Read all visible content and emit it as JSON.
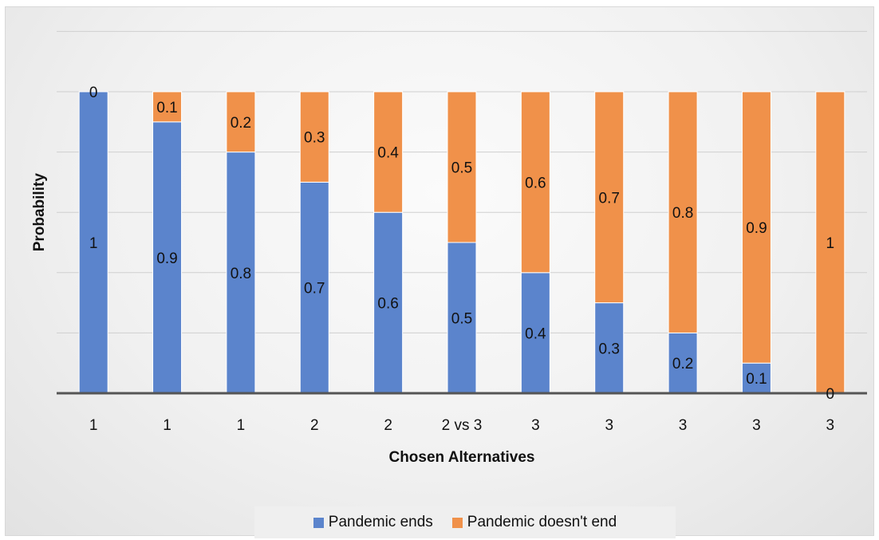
{
  "chart_data": {
    "type": "bar",
    "stacked": true,
    "title": "",
    "xlabel": "Chosen Alternatives",
    "ylabel": "Probability",
    "ylim": [
      0,
      1.2
    ],
    "y_tick_labels_shown": false,
    "grid": true,
    "legend_position": "bottom",
    "categories": [
      "1",
      "1",
      "1",
      "2",
      "2",
      "2 vs 3",
      "3",
      "3",
      "3",
      "3",
      "3"
    ],
    "series": [
      {
        "name": "Pandemic ends",
        "color": "#5b84cc",
        "values": [
          1,
          0.9,
          0.8,
          0.7,
          0.6,
          0.5,
          0.4,
          0.3,
          0.2,
          0.1,
          0
        ],
        "labels": [
          "1",
          "0.9",
          "0.8",
          "0.7",
          "0.6",
          "0.5",
          "0.4",
          "0.3",
          "0.2",
          "0.1",
          "0"
        ]
      },
      {
        "name": "Pandemic doesn't end",
        "color": "#f0914a",
        "values": [
          0,
          0.1,
          0.2,
          0.3,
          0.4,
          0.5,
          0.6,
          0.7,
          0.8,
          0.9,
          1
        ],
        "labels": [
          "0",
          "0.1",
          "0.2",
          "0.3",
          "0.4",
          "0.5",
          "0.6",
          "0.7",
          "0.8",
          "0.9",
          "1"
        ]
      }
    ]
  },
  "legend": {
    "ends_label": "Pandemic ends",
    "not_end_label": "Pandemic doesn't end"
  }
}
